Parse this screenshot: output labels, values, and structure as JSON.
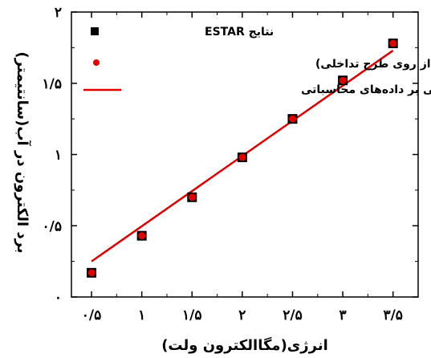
{
  "chart_data": {
    "type": "scatter",
    "xlabel": "انرژی(مگاالکترون ولت)",
    "ylabel": "برد الکترون در آب(سانتیمتر)",
    "xlim": [
      0.3,
      3.75
    ],
    "ylim": [
      0,
      2
    ],
    "x_ticks": [
      0.5,
      1,
      1.5,
      2,
      2.5,
      3,
      3.5
    ],
    "x_tick_labels": [
      "۰/۵",
      "۱",
      "۱/۵",
      "۲",
      "۲/۵",
      "۳",
      "۳/۵"
    ],
    "y_ticks": [
      0,
      0.5,
      1,
      1.5,
      2
    ],
    "y_tick_labels": [
      "۰",
      "۰/۵",
      "۱",
      "۱/۵",
      "۲"
    ],
    "legend_position": "top-right",
    "series": [
      {
        "name": "نتایج ESTAR",
        "kind": "square-marker",
        "color": "#000000",
        "x": [
          0.5,
          1,
          1.5,
          2,
          2.5,
          3,
          3.5
        ],
        "y": [
          0.17,
          0.43,
          0.7,
          0.98,
          1.25,
          1.52,
          1.78
        ]
      },
      {
        "name": "نتایج محاسبات(از روی طرح تداخلی)",
        "kind": "circle-marker",
        "color": "#e00000",
        "x": [
          0.5,
          1,
          1.5,
          2,
          2.5,
          3,
          3.5
        ],
        "y": [
          0.17,
          0.43,
          0.7,
          0.98,
          1.25,
          1.52,
          1.78
        ]
      },
      {
        "name": "برازش خطی بر داده‌های محاسباتی",
        "kind": "line",
        "color": "#e00000",
        "x": [
          0.5,
          3.5
        ],
        "y": [
          0.25,
          1.73
        ]
      }
    ]
  }
}
